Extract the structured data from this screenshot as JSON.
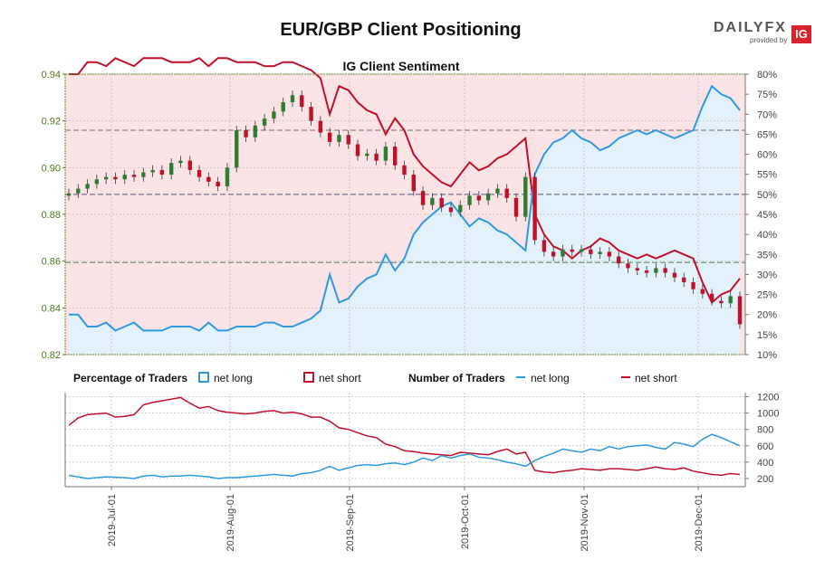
{
  "header": {
    "title": "EUR/GBP Client Positioning"
  },
  "brand": {
    "name": "DAILYFX",
    "tagline": "provided by",
    "badge": "IG"
  },
  "legend": {
    "pct_title": "Percentage of Traders",
    "pct_long": "net long",
    "pct_short": "net short",
    "num_title": "Number of Traders",
    "num_long": "net long",
    "num_short": "net short"
  },
  "colors": {
    "long": "#2e9be0",
    "short": "#c0102a",
    "up": "#2e7d32",
    "down": "#c0102a",
    "long_fill": "#e3f1fb",
    "short_fill": "#fbe3e6"
  },
  "chart_data": [
    {
      "type": "candlestick",
      "title": "IG Client Sentiment",
      "x_ticks": [
        "2019-Jul-01",
        "2019-Aug-01",
        "2019-Sep-01",
        "2019-Oct-01",
        "2019-Nov-01",
        "2019-Dec-01"
      ],
      "ylim": [
        0.82,
        0.94
      ],
      "y_ticks": [
        "0.82",
        "0.84",
        "0.86",
        "0.88",
        "0.90",
        "0.92",
        "0.94"
      ],
      "y2lim": [
        10,
        80
      ],
      "y2_ticks": [
        "10%",
        "15%",
        "20%",
        "25%",
        "30%",
        "35%",
        "40%",
        "45%",
        "50%",
        "55%",
        "60%",
        "65%",
        "70%",
        "75%",
        "80%"
      ],
      "reference_lines": [
        33,
        50,
        66
      ],
      "price_close": [
        0.889,
        0.891,
        0.893,
        0.895,
        0.896,
        0.895,
        0.897,
        0.896,
        0.898,
        0.899,
        0.897,
        0.902,
        0.903,
        0.899,
        0.896,
        0.894,
        0.892,
        0.9,
        0.916,
        0.913,
        0.918,
        0.921,
        0.924,
        0.928,
        0.931,
        0.926,
        0.92,
        0.915,
        0.911,
        0.914,
        0.91,
        0.905,
        0.906,
        0.903,
        0.909,
        0.901,
        0.897,
        0.89,
        0.884,
        0.887,
        0.883,
        0.881,
        0.884,
        0.888,
        0.886,
        0.889,
        0.891,
        0.887,
        0.879,
        0.896,
        0.869,
        0.864,
        0.862,
        0.865,
        0.864,
        0.865,
        0.863,
        0.864,
        0.862,
        0.859,
        0.857,
        0.856,
        0.855,
        0.857,
        0.855,
        0.853,
        0.851,
        0.848,
        0.846,
        0.843,
        0.842,
        0.845,
        0.833
      ],
      "pct_long": [
        20,
        20,
        17,
        17,
        18,
        16,
        17,
        18,
        16,
        16,
        16,
        17,
        17,
        17,
        16,
        18,
        16,
        16,
        17,
        17,
        17,
        18,
        18,
        17,
        17,
        18,
        19,
        21,
        30,
        23,
        24,
        27,
        29,
        30,
        35,
        31,
        34,
        40,
        43,
        45,
        47,
        48,
        45,
        42,
        44,
        43,
        41,
        40,
        38,
        36,
        55,
        60,
        63,
        64,
        66,
        64,
        63,
        61,
        62,
        64,
        65,
        66,
        65,
        66,
        65,
        64,
        65,
        66,
        72,
        77,
        75,
        74,
        71
      ],
      "pct_short": [
        80,
        80,
        83,
        83,
        82,
        84,
        83,
        82,
        84,
        84,
        84,
        83,
        83,
        83,
        84,
        82,
        84,
        84,
        83,
        83,
        83,
        82,
        82,
        83,
        83,
        82,
        81,
        79,
        70,
        77,
        76,
        73,
        71,
        70,
        65,
        69,
        66,
        60,
        57,
        55,
        53,
        52,
        55,
        58,
        56,
        57,
        59,
        60,
        62,
        64,
        45,
        40,
        37,
        36,
        34,
        36,
        37,
        39,
        38,
        36,
        35,
        34,
        35,
        34,
        35,
        36,
        35,
        34,
        28,
        23,
        25,
        26,
        29
      ],
      "trader_ylim": [
        100,
        1250
      ],
      "trader_y_ticks": [
        "200",
        "400",
        "600",
        "800",
        "1000",
        "1200"
      ],
      "traders_long": [
        240,
        220,
        200,
        210,
        220,
        215,
        210,
        200,
        230,
        240,
        220,
        230,
        230,
        240,
        230,
        220,
        200,
        210,
        210,
        220,
        230,
        240,
        250,
        240,
        230,
        260,
        270,
        300,
        350,
        300,
        330,
        360,
        370,
        360,
        380,
        390,
        370,
        400,
        450,
        420,
        480,
        450,
        480,
        500,
        460,
        450,
        430,
        400,
        380,
        350,
        420,
        470,
        510,
        560,
        540,
        520,
        560,
        540,
        590,
        560,
        590,
        600,
        610,
        580,
        560,
        640,
        620,
        590,
        680,
        740,
        700,
        650,
        600
      ],
      "traders_short": [
        850,
        940,
        980,
        990,
        1000,
        950,
        960,
        980,
        1100,
        1130,
        1150,
        1170,
        1190,
        1120,
        1060,
        1080,
        1030,
        1010,
        1000,
        990,
        1000,
        1020,
        1030,
        1000,
        1010,
        990,
        950,
        950,
        900,
        820,
        800,
        760,
        720,
        700,
        620,
        590,
        540,
        530,
        510,
        500,
        490,
        480,
        520,
        510,
        500,
        490,
        530,
        560,
        500,
        520,
        300,
        280,
        270,
        290,
        300,
        320,
        310,
        300,
        320,
        320,
        310,
        300,
        320,
        340,
        320,
        310,
        330,
        290,
        270,
        250,
        240,
        260,
        250
      ]
    }
  ]
}
